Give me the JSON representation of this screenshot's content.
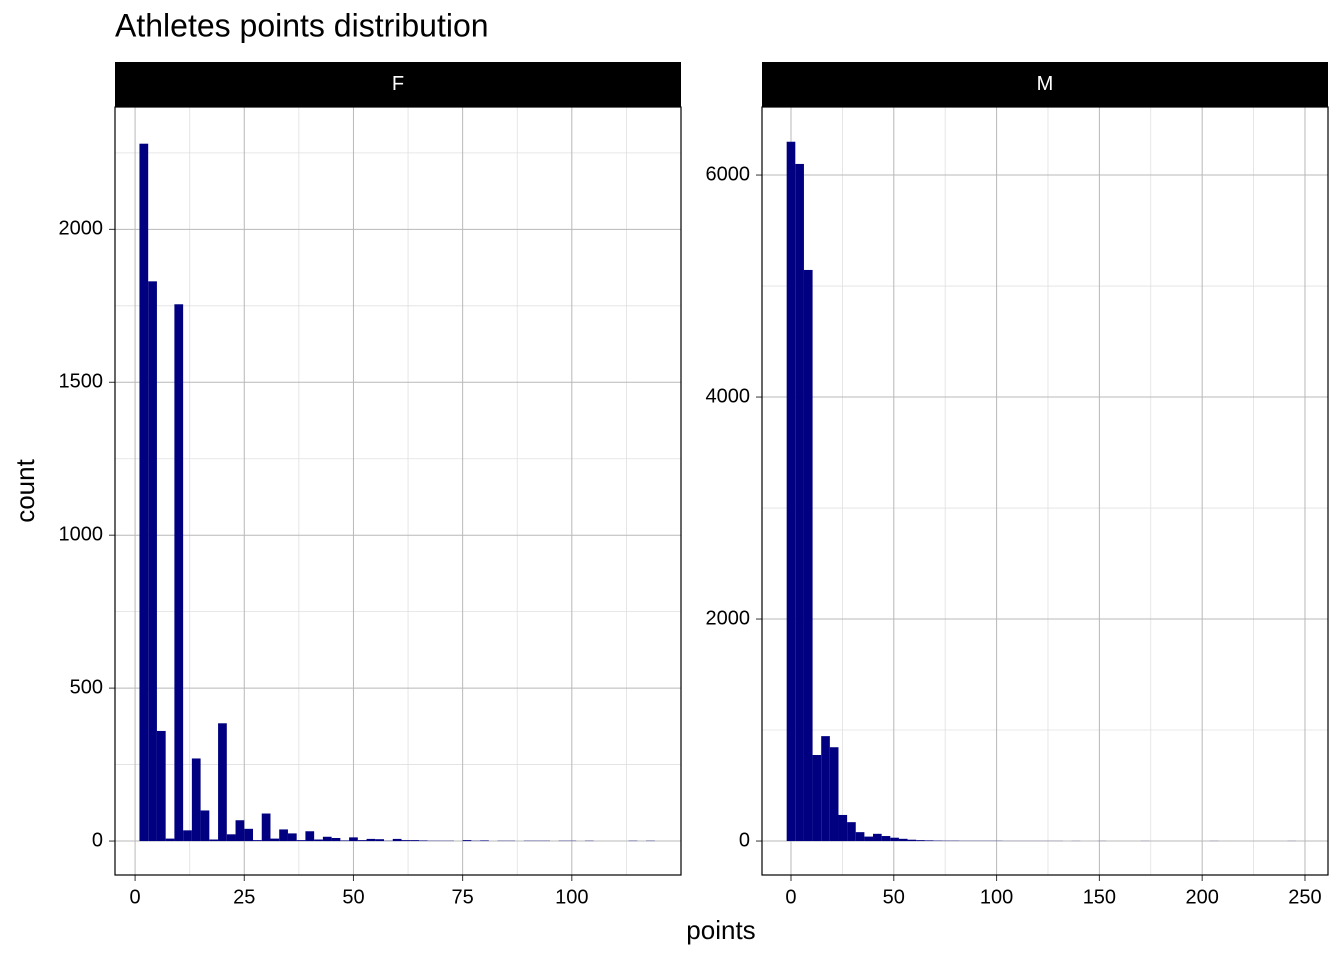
{
  "title": "Athletes points distribution",
  "x_label": "points",
  "y_label": "count",
  "chart_data": [
    {
      "type": "histogram",
      "title": "F",
      "color": "#000080",
      "grid": true,
      "bins": [
        1,
        3,
        5,
        7,
        9,
        11,
        13,
        15,
        17,
        19,
        21,
        23,
        25,
        27,
        29,
        31,
        33,
        35,
        37,
        39,
        41,
        43,
        45,
        47,
        49,
        51,
        53,
        55,
        57,
        59,
        61,
        63,
        65,
        67,
        69,
        71,
        73,
        75,
        77,
        79,
        81,
        83,
        85,
        87,
        89,
        91,
        93,
        95,
        97,
        99,
        101,
        103,
        105,
        107,
        109,
        111,
        113,
        115,
        117,
        119,
        121
      ],
      "values": [
        2280,
        1830,
        360,
        8,
        1755,
        35,
        270,
        100,
        5,
        385,
        22,
        68,
        40,
        3,
        90,
        8,
        38,
        25,
        3,
        32,
        5,
        14,
        10,
        2,
        12,
        3,
        7,
        6,
        1,
        7,
        3,
        3,
        2,
        1,
        1,
        1,
        0,
        3,
        1,
        2,
        0,
        1,
        1,
        0,
        1,
        1,
        1,
        0,
        1,
        1,
        0,
        1,
        0,
        0,
        0,
        0,
        1,
        0,
        1,
        0
      ],
      "xlim": [
        -4.6,
        125
      ],
      "xticks": [
        0,
        25,
        50,
        75,
        100
      ],
      "x_minor_breaks": [
        12.5,
        37.5,
        62.5,
        87.5,
        112.5
      ],
      "ylim": [
        -111,
        2400
      ],
      "yticks": [
        0,
        500,
        1000,
        1500,
        2000
      ],
      "y_minor_breaks": [
        250,
        750,
        1250,
        1750,
        2250
      ]
    },
    {
      "type": "histogram",
      "title": "M",
      "color": "#000080",
      "grid": true,
      "bins": [
        -2.1,
        2.1,
        6.3,
        10.5,
        14.7,
        18.9,
        23.1,
        27.3,
        31.5,
        35.7,
        39.9,
        44.1,
        48.3,
        52.5,
        56.7,
        60.9,
        65.1,
        69.3,
        73.5,
        77.7,
        81.9,
        86.1,
        90.3,
        94.5,
        98.7,
        102.9,
        107.1,
        111.3,
        115.5,
        119.7,
        123.9,
        128.1,
        132.3,
        136.5,
        140.7,
        144.9,
        149.1,
        153.3,
        157.5,
        161.7,
        165.9,
        170.1,
        174.3,
        178.5,
        182.7,
        186.9,
        191.1,
        195.3,
        199.5,
        203.7,
        207.9,
        212.1,
        216.3,
        220.5,
        224.7,
        228.9,
        233.1,
        237.3,
        241.5,
        245.7,
        249.9
      ],
      "values": [
        6300,
        6100,
        5145,
        775,
        945,
        845,
        235,
        170,
        80,
        40,
        65,
        45,
        30,
        20,
        12,
        8,
        6,
        4,
        3,
        3,
        2,
        2,
        2,
        2,
        2,
        1,
        1,
        1,
        1,
        1,
        1,
        1,
        0,
        1,
        0,
        0,
        1,
        0,
        0,
        0,
        0,
        1,
        0,
        0,
        0,
        0,
        0,
        0,
        0,
        1,
        0,
        0,
        0,
        0,
        0,
        0,
        0,
        0,
        1,
        0
      ],
      "xlim": [
        -14.1,
        261.2
      ],
      "xticks": [
        0,
        50,
        100,
        150,
        200,
        250
      ],
      "x_minor_breaks": [
        25,
        75,
        125,
        175,
        225
      ],
      "ylim": [
        -306,
        6613
      ],
      "yticks": [
        0,
        2000,
        4000,
        6000
      ],
      "y_minor_breaks": [
        1000,
        3000,
        5000
      ]
    }
  ]
}
